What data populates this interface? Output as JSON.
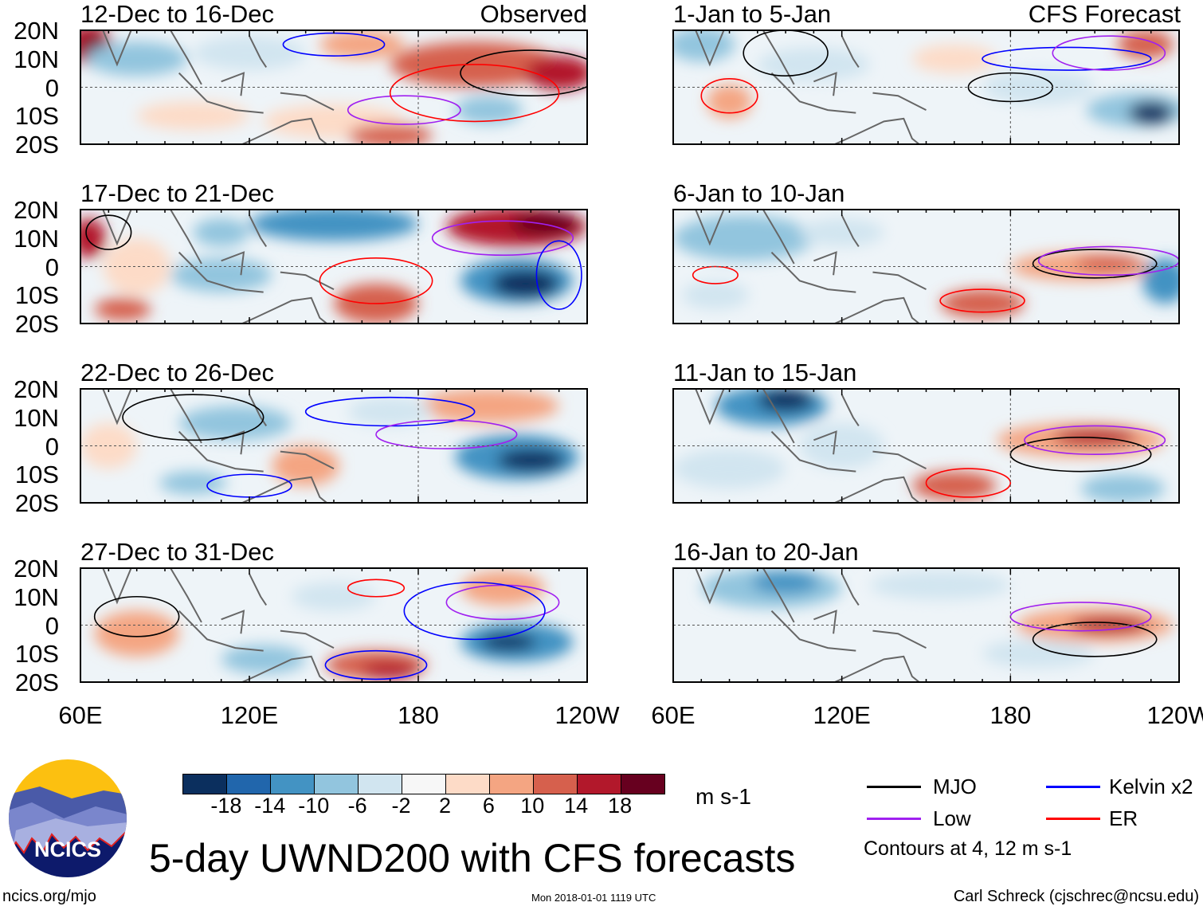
{
  "figure_title": "5-day UWND200 with CFS forecasts",
  "observed_label": "Observed",
  "forecast_label": "CFS Forecast",
  "panels": [
    {
      "label": "12-Dec to 16-Dec",
      "group": "observed"
    },
    {
      "label": "17-Dec to 21-Dec",
      "group": "observed"
    },
    {
      "label": "22-Dec to 26-Dec",
      "group": "observed"
    },
    {
      "label": "27-Dec to 31-Dec",
      "group": "observed"
    },
    {
      "label": "1-Jan to 5-Jan",
      "group": "forecast"
    },
    {
      "label": "6-Jan to 10-Jan",
      "group": "forecast"
    },
    {
      "label": "11-Jan to 15-Jan",
      "group": "forecast"
    },
    {
      "label": "16-Jan to 20-Jan",
      "group": "forecast"
    }
  ],
  "lat_labels": [
    "20N",
    "10N",
    "0",
    "10S",
    "20S"
  ],
  "lon_labels": [
    "60E",
    "120E",
    "180",
    "120W"
  ],
  "colorbar": {
    "unit": "m s-1",
    "ticks": [
      "-18",
      "-14",
      "-10",
      "-6",
      "-2",
      "2",
      "6",
      "10",
      "14",
      "18"
    ],
    "colors": [
      "#0b2f5e",
      "#2166ac",
      "#4393c3",
      "#92c5de",
      "#d1e5f0",
      "#f7f7f7",
      "#fddbc7",
      "#f4a582",
      "#d6604d",
      "#b2182b",
      "#67001f"
    ]
  },
  "legend": {
    "items": [
      {
        "label": "MJO",
        "color": "#000000"
      },
      {
        "label": "Kelvin x2",
        "color": "#0000ff"
      },
      {
        "label": "Low",
        "color": "#a020f0"
      },
      {
        "label": "ER",
        "color": "#ff0000"
      }
    ],
    "contours_note": "Contours at 4, 12 m s-1"
  },
  "logo_text": "NCICS",
  "footer": {
    "url": "ncics.org/mjo",
    "timestamp": "Mon 2018-01-01 1119 UTC",
    "author": "Carl Schreck (cjschrec@ncsu.edu)"
  }
}
